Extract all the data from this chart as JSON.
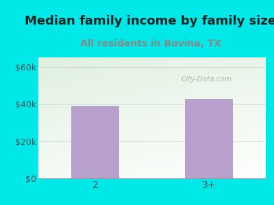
{
  "title": "Median family income by family size",
  "subtitle": "All residents in Bovina, TX",
  "categories": [
    "2",
    "3+"
  ],
  "values": [
    39000,
    42500
  ],
  "bar_color": "#b8a0cc",
  "background_color": "#00e8e8",
  "plot_bg_top_left": "#d8eed8",
  "plot_bg_bottom_right": "#f0f8f0",
  "plot_bg_white": "#ffffff",
  "title_fontsize": 13,
  "subtitle_fontsize": 10,
  "yticks": [
    0,
    20000,
    40000,
    60000
  ],
  "ytick_labels": [
    "$0",
    "$20k",
    "$40k",
    "$60k"
  ],
  "ylim": [
    0,
    65000
  ],
  "tick_color": "#555555",
  "title_color": "#222222",
  "subtitle_color": "#888888",
  "watermark": "City-Data.com",
  "gridline_color": "#ccddcc"
}
